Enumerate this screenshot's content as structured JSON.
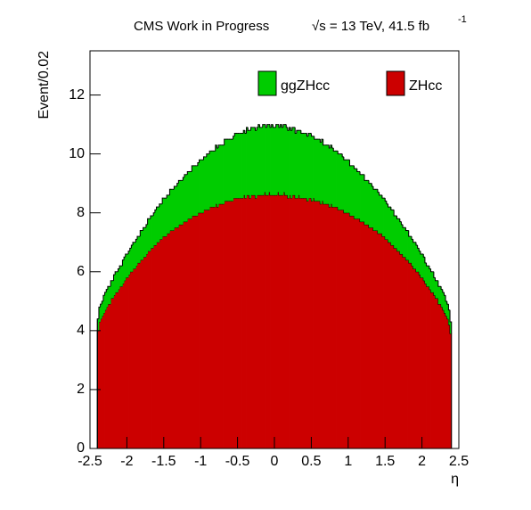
{
  "chart_data": {
    "type": "histogram",
    "stacked": true,
    "title": "CMS Work in Progress",
    "lumi": "√s = 13 TeV, 41.5 fb",
    "lumi_sup": "-1",
    "xlabel": "η",
    "ylabel": "Event/0.02",
    "xlim": [
      -2.5,
      2.5
    ],
    "ylim": [
      0,
      13.5
    ],
    "xticks": [
      -2.5,
      -2,
      -1.5,
      -1,
      -0.5,
      0,
      0.5,
      1,
      1.5,
      2,
      2.5
    ],
    "yticks": [
      0,
      2,
      4,
      6,
      8,
      10,
      12
    ],
    "bins": [
      -2.4,
      -2.38,
      -2.36,
      -2.34,
      -2.32,
      -2.3,
      -2.28,
      -2.26,
      -2.24,
      -2.22,
      -2.2,
      -2.18,
      -2.16,
      -2.14,
      -2.12,
      -2.1,
      -2.08,
      -2.06,
      -2.04,
      -2.02,
      -2,
      -1.98,
      -1.96,
      -1.94,
      -1.92,
      -1.9,
      -1.88,
      -1.86,
      -1.84,
      -1.82,
      -1.8,
      -1.78,
      -1.76,
      -1.74,
      -1.72,
      -1.7,
      -1.68,
      -1.66,
      -1.64,
      -1.62,
      -1.6,
      -1.58,
      -1.56,
      -1.54,
      -1.52,
      -1.5,
      -1.48,
      -1.46,
      -1.44,
      -1.42,
      -1.4,
      -1.38,
      -1.36,
      -1.34,
      -1.32,
      -1.3,
      -1.28,
      -1.26,
      -1.24,
      -1.22,
      -1.2,
      -1.18,
      -1.16,
      -1.14,
      -1.12,
      -1.1,
      -1.08,
      -1.06,
      -1.04,
      -1.02,
      -1,
      -0.98,
      -0.96,
      -0.94,
      -0.92,
      -0.9,
      -0.88,
      -0.86,
      -0.84,
      -0.82,
      -0.8,
      -0.78,
      -0.76,
      -0.74,
      -0.72,
      -0.7,
      -0.68,
      -0.66,
      -0.64,
      -0.62,
      -0.6,
      -0.58,
      -0.56,
      -0.54,
      -0.52,
      -0.5,
      -0.48,
      -0.46,
      -0.44,
      -0.42,
      -0.4,
      -0.38,
      -0.36,
      -0.34,
      -0.32,
      -0.3,
      -0.28,
      -0.26,
      -0.24,
      -0.22,
      -0.2,
      -0.18,
      -0.16,
      -0.14,
      -0.12,
      -0.1,
      -0.08,
      -0.06,
      -0.04,
      -0.02,
      0,
      0.02,
      0.04,
      0.06,
      0.08,
      0.1,
      0.12,
      0.14,
      0.16,
      0.18,
      0.2,
      0.22,
      0.24,
      0.26,
      0.28,
      0.3,
      0.32,
      0.34,
      0.36,
      0.38,
      0.4,
      0.42,
      0.44,
      0.46,
      0.48,
      0.5,
      0.52,
      0.54,
      0.56,
      0.58,
      0.6,
      0.62,
      0.64,
      0.66,
      0.68,
      0.7,
      0.72,
      0.74,
      0.76,
      0.78,
      0.8,
      0.82,
      0.84,
      0.86,
      0.88,
      0.9,
      0.92,
      0.94,
      0.96,
      0.98,
      1,
      1.02,
      1.04,
      1.06,
      1.08,
      1.1,
      1.12,
      1.14,
      1.16,
      1.18,
      1.2,
      1.22,
      1.24,
      1.26,
      1.28,
      1.3,
      1.32,
      1.34,
      1.36,
      1.38,
      1.4,
      1.42,
      1.44,
      1.46,
      1.48,
      1.5,
      1.52,
      1.54,
      1.56,
      1.58,
      1.6,
      1.62,
      1.64,
      1.66,
      1.68,
      1.7,
      1.72,
      1.74,
      1.76,
      1.78,
      1.8,
      1.82,
      1.84,
      1.86,
      1.88,
      1.9,
      1.92,
      1.94,
      1.96,
      1.98,
      2,
      2.02,
      2.04,
      2.06,
      2.08,
      2.1,
      2.12,
      2.14,
      2.16,
      2.18,
      2.2,
      2.22,
      2.24,
      2.26,
      2.28,
      2.3,
      2.32,
      2.34,
      2.36,
      2.38,
      2.4
    ],
    "series": [
      {
        "name": "ggZHcc",
        "color": "#00cc00",
        "values": [
          0.4,
          0.5,
          0.5,
          0.5,
          0.6,
          0.6,
          0.6,
          0.6,
          0.6,
          0.6,
          0.6,
          0.7,
          0.7,
          0.7,
          0.7,
          0.7,
          0.7,
          0.8,
          0.8,
          0.8,
          0.8,
          0.8,
          0.8,
          0.9,
          0.9,
          0.9,
          0.9,
          0.9,
          0.9,
          1.0,
          1.0,
          1.0,
          1.0,
          1.0,
          1.1,
          1.1,
          1.1,
          1.1,
          1.1,
          1.2,
          1.2,
          1.2,
          1.2,
          1.2,
          1.3,
          1.3,
          1.3,
          1.3,
          1.3,
          1.4,
          1.4,
          1.4,
          1.4,
          1.4,
          1.5,
          1.5,
          1.5,
          1.5,
          1.5,
          1.6,
          1.6,
          1.6,
          1.6,
          1.6,
          1.7,
          1.7,
          1.7,
          1.7,
          1.7,
          1.8,
          1.8,
          1.8,
          1.8,
          1.8,
          1.9,
          1.9,
          1.9,
          1.9,
          1.9,
          1.9,
          2.0,
          2.0,
          2.0,
          2.0,
          2.0,
          2.0,
          2.1,
          2.1,
          2.1,
          2.1,
          2.1,
          2.1,
          2.1,
          2.2,
          2.2,
          2.2,
          2.2,
          2.2,
          2.2,
          2.2,
          2.2,
          2.3,
          2.2,
          2.3,
          2.3,
          2.3,
          2.3,
          2.3,
          2.3,
          2.4,
          2.3,
          2.3,
          2.4,
          2.3,
          2.3,
          2.4,
          2.3,
          2.3,
          2.4,
          2.3,
          2.3,
          2.4,
          2.3,
          2.3,
          2.4,
          2.3,
          2.3,
          2.4,
          2.3,
          2.3,
          2.3,
          2.3,
          2.3,
          2.3,
          2.2,
          2.3,
          2.2,
          2.3,
          2.2,
          2.2,
          2.2,
          2.2,
          2.2,
          2.2,
          2.2,
          2.2,
          2.1,
          2.1,
          2.1,
          2.1,
          2.1,
          2.1,
          2.1,
          2.0,
          2.0,
          2.0,
          2.0,
          2.0,
          2.0,
          2.0,
          1.9,
          1.9,
          1.9,
          1.9,
          1.9,
          1.9,
          1.8,
          1.8,
          1.8,
          1.8,
          1.8,
          1.7,
          1.7,
          1.7,
          1.7,
          1.7,
          1.6,
          1.6,
          1.6,
          1.6,
          1.6,
          1.5,
          1.5,
          1.5,
          1.5,
          1.5,
          1.4,
          1.4,
          1.4,
          1.4,
          1.4,
          1.3,
          1.3,
          1.3,
          1.3,
          1.3,
          1.2,
          1.2,
          1.2,
          1.2,
          1.2,
          1.1,
          1.1,
          1.1,
          1.1,
          1.1,
          1.0,
          1.0,
          1.0,
          1.0,
          1.0,
          0.9,
          0.9,
          0.9,
          0.9,
          0.9,
          0.9,
          0.8,
          0.8,
          0.8,
          0.8,
          0.8,
          0.7,
          0.7,
          0.7,
          0.7,
          0.7,
          0.7,
          0.6,
          0.6,
          0.6,
          0.6,
          0.6,
          0.6,
          0.6,
          0.6,
          0.5,
          0.5,
          0.5,
          0.4
        ]
      },
      {
        "name": "ZHcc",
        "color": "#cc0000",
        "values": [
          4.0,
          4.3,
          4.4,
          4.5,
          4.6,
          4.7,
          4.8,
          4.9,
          4.9,
          5.1,
          5.1,
          5.2,
          5.3,
          5.3,
          5.4,
          5.5,
          5.5,
          5.6,
          5.7,
          5.8,
          5.8,
          5.9,
          6.0,
          6.0,
          6.1,
          6.1,
          6.2,
          6.3,
          6.3,
          6.4,
          6.4,
          6.5,
          6.5,
          6.6,
          6.7,
          6.7,
          6.8,
          6.8,
          6.9,
          6.9,
          7.0,
          7.0,
          7.1,
          7.1,
          7.2,
          7.2,
          7.2,
          7.3,
          7.3,
          7.4,
          7.4,
          7.4,
          7.5,
          7.5,
          7.5,
          7.6,
          7.6,
          7.6,
          7.7,
          7.7,
          7.7,
          7.8,
          7.8,
          7.8,
          7.9,
          7.9,
          7.9,
          7.9,
          8.0,
          8.0,
          8.0,
          8.0,
          8.1,
          8.1,
          8.1,
          8.1,
          8.2,
          8.2,
          8.2,
          8.2,
          8.3,
          8.2,
          8.3,
          8.3,
          8.3,
          8.3,
          8.4,
          8.4,
          8.4,
          8.4,
          8.4,
          8.4,
          8.5,
          8.5,
          8.5,
          8.5,
          8.5,
          8.5,
          8.5,
          8.6,
          8.5,
          8.6,
          8.6,
          8.5,
          8.6,
          8.6,
          8.6,
          8.5,
          8.6,
          8.6,
          8.6,
          8.6,
          8.6,
          8.7,
          8.6,
          8.6,
          8.7,
          8.6,
          8.6,
          8.6,
          8.6,
          8.6,
          8.7,
          8.6,
          8.6,
          8.6,
          8.7,
          8.6,
          8.6,
          8.5,
          8.6,
          8.5,
          8.6,
          8.6,
          8.5,
          8.5,
          8.6,
          8.5,
          8.5,
          8.5,
          8.5,
          8.5,
          8.4,
          8.5,
          8.5,
          8.4,
          8.5,
          8.4,
          8.4,
          8.4,
          8.4,
          8.3,
          8.4,
          8.3,
          8.3,
          8.3,
          8.3,
          8.2,
          8.3,
          8.2,
          8.2,
          8.2,
          8.2,
          8.1,
          8.1,
          8.1,
          8.1,
          8.0,
          8.0,
          8.0,
          8.0,
          7.9,
          7.9,
          7.9,
          7.8,
          7.8,
          7.8,
          7.8,
          7.7,
          7.7,
          7.7,
          7.6,
          7.6,
          7.6,
          7.5,
          7.5,
          7.5,
          7.4,
          7.4,
          7.4,
          7.3,
          7.3,
          7.3,
          7.2,
          7.2,
          7.1,
          7.1,
          7.0,
          7.0,
          6.9,
          6.9,
          6.8,
          6.8,
          6.7,
          6.7,
          6.6,
          6.6,
          6.5,
          6.5,
          6.4,
          6.4,
          6.3,
          6.3,
          6.2,
          6.1,
          6.1,
          6.0,
          6.0,
          5.9,
          5.8,
          5.8,
          5.7,
          5.6,
          5.5,
          5.5,
          5.4,
          5.3,
          5.3,
          5.2,
          5.1,
          5.1,
          4.9,
          4.9,
          4.8,
          4.7,
          4.6,
          4.5,
          4.4,
          4.2,
          3.9
        ]
      }
    ]
  }
}
